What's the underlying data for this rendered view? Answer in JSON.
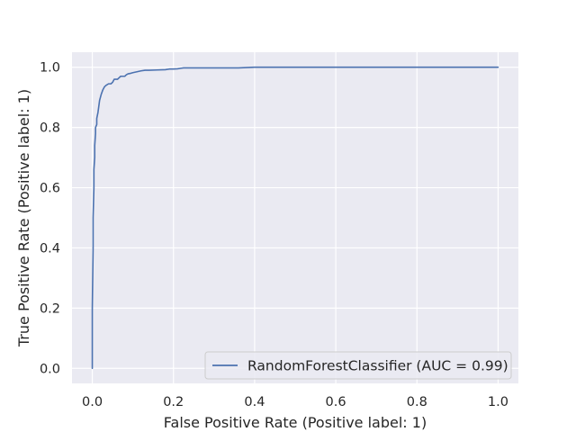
{
  "chart_data": {
    "type": "line",
    "title": "",
    "xlabel": "False Positive Rate (Positive label: 1)",
    "ylabel": "True Positive Rate (Positive label: 1)",
    "xlim": [
      -0.05,
      1.05
    ],
    "ylim": [
      -0.05,
      1.05
    ],
    "xticks": [
      0.0,
      0.2,
      0.4,
      0.6,
      0.8,
      1.0
    ],
    "yticks": [
      0.0,
      0.2,
      0.4,
      0.6,
      0.8,
      1.0
    ],
    "xtick_labels": [
      "0.0",
      "0.2",
      "0.4",
      "0.6",
      "0.8",
      "1.0"
    ],
    "ytick_labels": [
      "0.0",
      "0.2",
      "0.4",
      "0.6",
      "0.8",
      "1.0"
    ],
    "grid": true,
    "legend_position": "lower-right",
    "background_color": "#eaeaf2",
    "grid_color": "#ffffff",
    "series": [
      {
        "name": "RandomForestClassifier (AUC = 0.99)",
        "color": "#4c72b0",
        "x": [
          0.0,
          0.0,
          0.002,
          0.002,
          0.004,
          0.004,
          0.006,
          0.006,
          0.008,
          0.008,
          0.011,
          0.011,
          0.014,
          0.016,
          0.018,
          0.022,
          0.026,
          0.03,
          0.034,
          0.04,
          0.046,
          0.05,
          0.054,
          0.058,
          0.062,
          0.066,
          0.07,
          0.076,
          0.08,
          0.084,
          0.088,
          0.095,
          0.1,
          0.11,
          0.12,
          0.13,
          0.14,
          0.16,
          0.18,
          0.19,
          0.2,
          0.21,
          0.22,
          0.225,
          0.23,
          0.26,
          0.3,
          0.36,
          0.38,
          0.4,
          1.0
        ],
        "y": [
          0.0,
          0.2,
          0.4,
          0.5,
          0.6,
          0.66,
          0.7,
          0.74,
          0.78,
          0.8,
          0.81,
          0.83,
          0.85,
          0.87,
          0.89,
          0.91,
          0.925,
          0.935,
          0.94,
          0.945,
          0.945,
          0.95,
          0.96,
          0.96,
          0.96,
          0.965,
          0.97,
          0.97,
          0.97,
          0.975,
          0.978,
          0.98,
          0.982,
          0.985,
          0.988,
          0.99,
          0.99,
          0.991,
          0.992,
          0.994,
          0.994,
          0.995,
          0.997,
          0.998,
          0.998,
          0.998,
          0.998,
          0.998,
          0.999,
          1.0,
          1.0
        ]
      }
    ]
  }
}
